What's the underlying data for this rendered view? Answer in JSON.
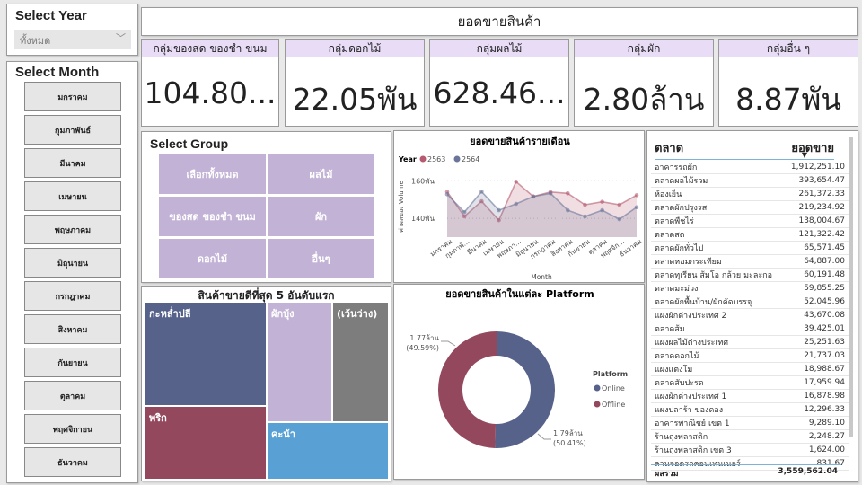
{
  "year_slicer": {
    "title": "Select Year",
    "selected": "ทั้งหมด",
    "icon": "chevron-down-icon"
  },
  "month_slicer": {
    "title": "Select Month",
    "items": [
      "มกราคม",
      "กุมภาพันธ์",
      "มีนาคม",
      "เมษายน",
      "พฤษภาคม",
      "มิถุนายน",
      "กรกฎาคม",
      "สิงหาคม",
      "กันยายน",
      "ตุลาคม",
      "พฤศจิกายน",
      "ธันวาคม"
    ]
  },
  "header": {
    "title": "ยอดขายสินค้า"
  },
  "kpis": [
    {
      "label": "กลุ่มของสด ของชำ ขนม",
      "value": "104.80..."
    },
    {
      "label": "กลุ่มดอกไม้",
      "value": "22.05พัน"
    },
    {
      "label": "กลุ่มผลไม้",
      "value": "628.46..."
    },
    {
      "label": "กลุ่มผัก",
      "value": "2.80ล้าน"
    },
    {
      "label": "กลุ่มอื่น ๆ",
      "value": "8.87พัน"
    }
  ],
  "group_slicer": {
    "title": "Select Group",
    "items": [
      "เลือกทั้งหมด",
      "ผลไม้",
      "ของสด ของชำ ขนม",
      "ผัก",
      "ดอกไม้",
      "อื่นๆ"
    ]
  },
  "treemap": {
    "title": "สินค้าขายดีที่สุด 5 อันดับแรก",
    "items": [
      {
        "label": "กะหล่ำปลี",
        "color": "#56628a"
      },
      {
        "label": "พริก",
        "color": "#93485e"
      },
      {
        "label": "ผักบุ้ง",
        "color": "#c2b2d6"
      },
      {
        "label": "(เว้นว่าง)",
        "color": "#7d7d7d"
      },
      {
        "label": "คะน้า",
        "color": "#59a0d4"
      }
    ]
  },
  "chart_data": [
    {
      "type": "area",
      "title": "ยอดขายสินค้ารายเดือน",
      "xlabel": "Month",
      "ylabel": "ค่าผลของ Volume",
      "legend_title": "Year",
      "legend_position": "top-left",
      "categories": [
        "มกราคม",
        "กุมภาพั...",
        "มีนาคม",
        "เมษายน",
        "พฤษภา...",
        "มิถุนายน",
        "กรกฎาคม",
        "สิงหาคม",
        "กันยายน",
        "ตุลาคม",
        "พฤศจิก...",
        "ธันวาคม"
      ],
      "yticks": [
        {
          "value": 140,
          "label": "140พัน"
        },
        {
          "value": 160,
          "label": "160พัน"
        }
      ],
      "ylim": [
        130,
        163
      ],
      "grid": true,
      "series": [
        {
          "name": "2563",
          "color": "#b55a70",
          "values": [
            154.1,
            141,
            149.1,
            139,
            159.5,
            151.6,
            154,
            153.3,
            147.2,
            148.8,
            147.2,
            152.3
          ]
        },
        {
          "name": "2564",
          "color": "#6b7599",
          "values": [
            152.8,
            143.3,
            154.2,
            144.3,
            147.7,
            151.6,
            153.3,
            144.3,
            141,
            144.3,
            139.5,
            145.9
          ]
        }
      ]
    },
    {
      "type": "pie",
      "title": "ยอดขายสินค้าในแต่ละ Platform",
      "legend_title": "Platform",
      "legend_position": "right",
      "slices": [
        {
          "name": "Online",
          "value": 50.41,
          "label": "1.79ล้าน",
          "pct": "(50.41%)",
          "color": "#56628a"
        },
        {
          "name": "Offline",
          "value": 49.59,
          "label": "1.77ล้าน",
          "pct": "(49.59%)",
          "color": "#93485e"
        }
      ]
    }
  ],
  "market_table": {
    "col1": "ตลาด",
    "col2": "ยอดขาย",
    "rows": [
      [
        "อาคารรถผัก",
        "1,912,251.10"
      ],
      [
        "ตลาดผลไม้รวม",
        "393,654.47"
      ],
      [
        "ห้องเย็น",
        "261,372.33"
      ],
      [
        "ตลาดผักปรุงรส",
        "219,234.92"
      ],
      [
        "ตลาดพืชไร่",
        "138,004.67"
      ],
      [
        "ตลาดสด",
        "121,322.42"
      ],
      [
        "ตลาดผักทั่วไป",
        "65,571.45"
      ],
      [
        "ตลาดหอมกระเทียม",
        "64,887.00"
      ],
      [
        "ตลาดทุเรียน ส้มโอ กล้วย มะละกอ",
        "60,191.48"
      ],
      [
        "ตลาดมะม่วง",
        "59,855.25"
      ],
      [
        "ตลาดผักพื้นบ้าน/ผักคัดบรรจุ",
        "52,045.96"
      ],
      [
        "แผงผักต่างประเทศ 2",
        "43,670.08"
      ],
      [
        "ตลาดส้ม",
        "39,425.01"
      ],
      [
        "แผงผลไม้ต่างประเทศ",
        "25,251.63"
      ],
      [
        "ตลาดดอกไม้",
        "21,737.03"
      ],
      [
        "แผงแตงโม",
        "18,988.67"
      ],
      [
        "ตลาดสับปะรด",
        "17,959.94"
      ],
      [
        "แผงผักต่างประเทศ 1",
        "16,878.98"
      ],
      [
        "แผงปลาร้า ของดอง",
        "12,296.33"
      ],
      [
        "อาคารพาณิชย์ เขต 1",
        "9,289.10"
      ],
      [
        "ร้านถุงพลาสติก",
        "2,248.27"
      ],
      [
        "ร้านถุงพลาสติก เขต 3",
        "1,624.00"
      ],
      [
        "ลานจอดรถคอนเทนเนอร์",
        "831.67"
      ]
    ],
    "total_label": "ผลรวม",
    "total": "3,559,562.04"
  }
}
